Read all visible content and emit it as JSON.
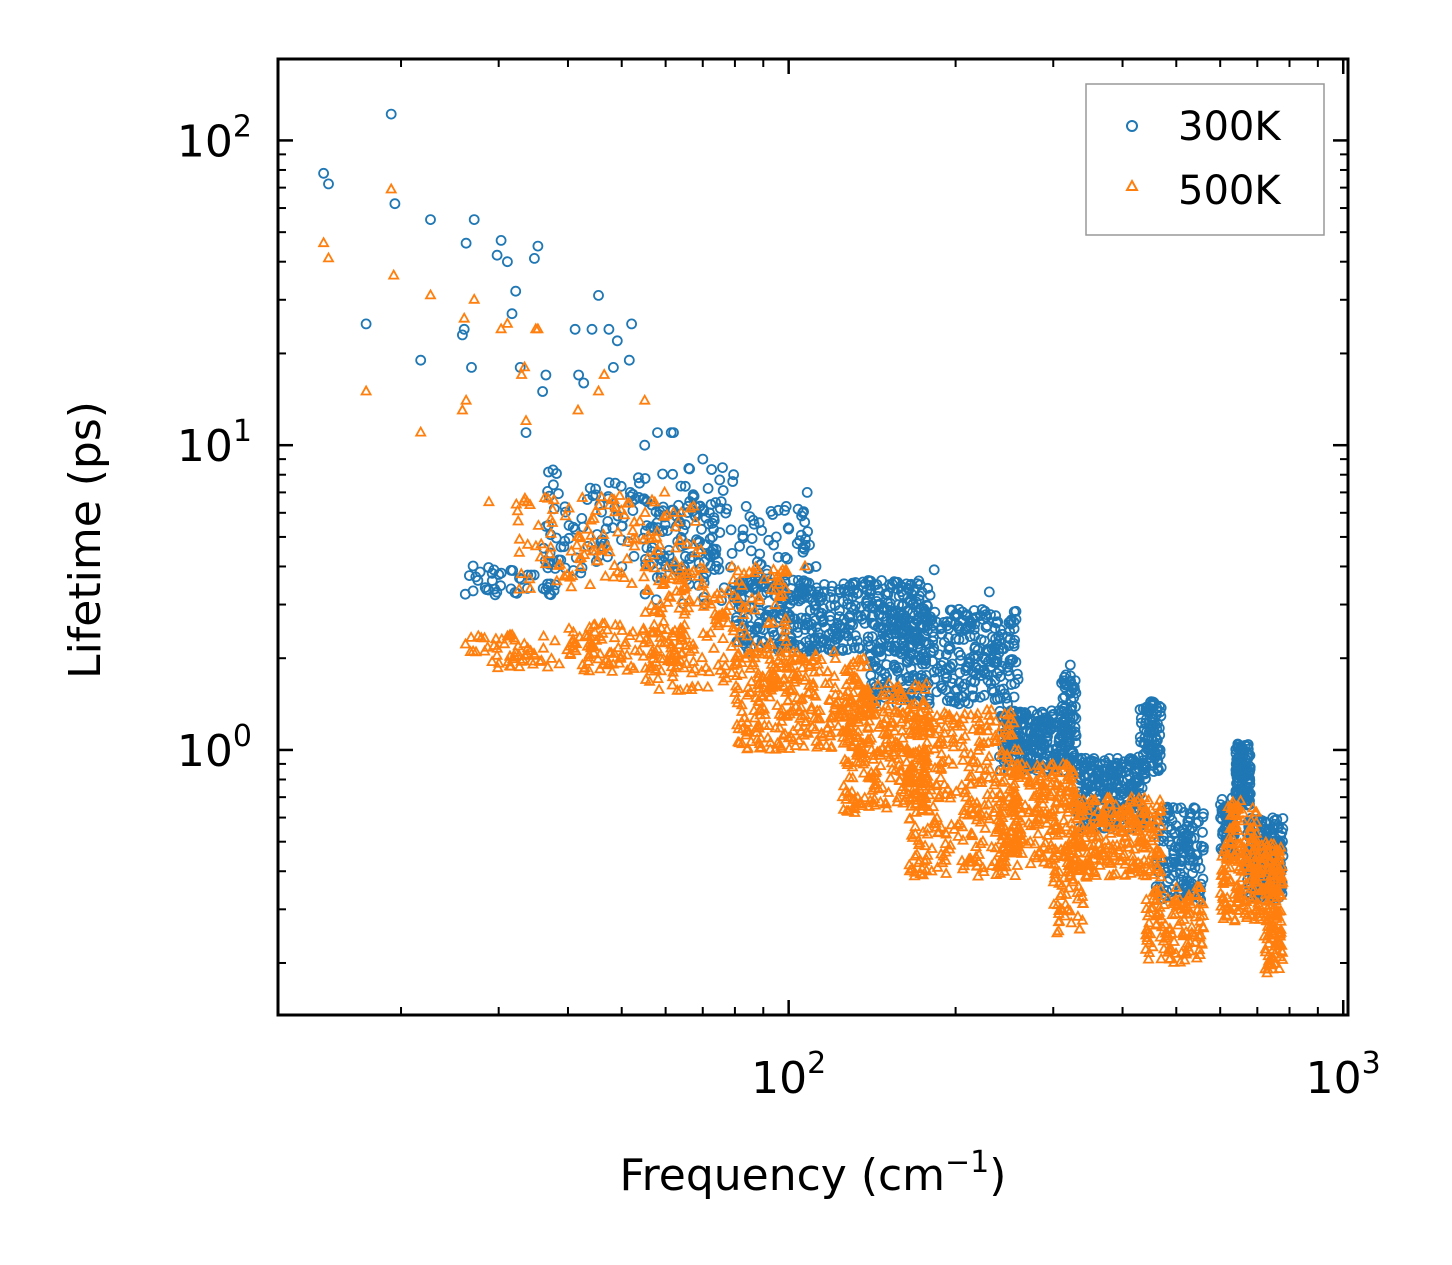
{
  "chart_data": {
    "type": "scatter",
    "x_scale": "log",
    "y_scale": "log",
    "xlabel": "Frequency (cm",
    "xlabel_sup": "−1",
    "xlabel_close": ")",
    "ylabel": "Lifetime (ps)",
    "xlim": [
      12,
      1020
    ],
    "ylim": [
      0.135,
      185
    ],
    "x_ticks": [
      {
        "base": "10",
        "exp": "2",
        "value": 100
      },
      {
        "base": "10",
        "exp": "3",
        "value": 1000
      }
    ],
    "y_ticks": [
      {
        "base": "10",
        "exp": "0",
        "value": 1
      },
      {
        "base": "10",
        "exp": "1",
        "value": 10
      },
      {
        "base": "10",
        "exp": "2",
        "value": 100
      }
    ],
    "legend": {
      "location": "upper right",
      "entries": [
        "300K",
        "500K"
      ]
    },
    "series": [
      {
        "name": "300K",
        "marker": "circle",
        "color": "#1f77b4",
        "outliers": [
          [
            14.5,
            78
          ],
          [
            14.8,
            72
          ],
          [
            17.3,
            25
          ],
          [
            19.2,
            122
          ],
          [
            19.5,
            62
          ],
          [
            21.7,
            19
          ],
          [
            22.6,
            55
          ],
          [
            25.8,
            23
          ],
          [
            26,
            24
          ],
          [
            26.2,
            46
          ],
          [
            26.8,
            18
          ],
          [
            27.1,
            55
          ],
          [
            29.8,
            42
          ],
          [
            30.3,
            47
          ],
          [
            31.1,
            40
          ],
          [
            31.7,
            27
          ],
          [
            32.2,
            32
          ],
          [
            32.8,
            18
          ],
          [
            33.6,
            11
          ],
          [
            34.8,
            41
          ],
          [
            35.3,
            45
          ],
          [
            36.5,
            17
          ],
          [
            36,
            15
          ],
          [
            41.2,
            24
          ],
          [
            41.8,
            17
          ],
          [
            42.7,
            16
          ],
          [
            44.2,
            24
          ],
          [
            45.4,
            31
          ],
          [
            47.4,
            24
          ],
          [
            48.3,
            18
          ],
          [
            49.1,
            22
          ],
          [
            51.6,
            19
          ],
          [
            52.1,
            25
          ],
          [
            55,
            10
          ],
          [
            58,
            11
          ],
          [
            61.4,
            11
          ],
          [
            62,
            11
          ],
          [
            70,
            9
          ],
          [
            72,
            6
          ],
          [
            95,
            5
          ],
          [
            106,
            6
          ],
          [
            108,
            7
          ],
          [
            112,
            4
          ],
          [
            183,
            3.9
          ],
          [
            230,
            3.3
          ],
          [
            322,
            1.9
          ]
        ],
        "bands": [
          {
            "x": [
              26,
              38
            ],
            "y": [
              3.2,
              4.2
            ],
            "n": 45
          },
          {
            "x": [
              36,
              80
            ],
            "y": [
              3.8,
              8.5
            ],
            "n": 150
          },
          {
            "x": [
              55,
              110
            ],
            "y": [
              3.0,
              6.5
            ],
            "n": 160
          },
          {
            "x": [
              80,
              180
            ],
            "y": [
              2.1,
              3.6
            ],
            "n": 420
          },
          {
            "x": [
              140,
              260
            ],
            "y": [
              1.4,
              2.9
            ],
            "n": 380
          },
          {
            "x": [
              240,
              330
            ],
            "y": [
              0.85,
              1.35
            ],
            "n": 260
          },
          {
            "x": [
              310,
              330
            ],
            "y": [
              1.1,
              1.8
            ],
            "n": 40
          },
          {
            "x": [
              330,
              440
            ],
            "y": [
              0.55,
              0.95
            ],
            "n": 260
          },
          {
            "x": [
              430,
              470
            ],
            "y": [
              0.85,
              1.45
            ],
            "n": 90
          },
          {
            "x": [
              460,
              560
            ],
            "y": [
              0.32,
              0.65
            ],
            "n": 150
          },
          {
            "x": [
              600,
              640
            ],
            "y": [
              0.45,
              0.7
            ],
            "n": 60
          },
          {
            "x": [
              640,
              680
            ],
            "y": [
              0.65,
              1.05
            ],
            "n": 120
          },
          {
            "x": [
              670,
              780
            ],
            "y": [
              0.32,
              0.6
            ],
            "n": 200
          }
        ]
      },
      {
        "name": "500K",
        "marker": "triangle",
        "color": "#ff7f0e",
        "outliers": [
          [
            14.5,
            46
          ],
          [
            14.8,
            41
          ],
          [
            17.3,
            15
          ],
          [
            19.2,
            69
          ],
          [
            19.4,
            36
          ],
          [
            21.7,
            11
          ],
          [
            22.6,
            31
          ],
          [
            25.8,
            13
          ],
          [
            26,
            26
          ],
          [
            26.2,
            14
          ],
          [
            27.1,
            30
          ],
          [
            28.8,
            6.5
          ],
          [
            30.3,
            24
          ],
          [
            31.1,
            25
          ],
          [
            33,
            17
          ],
          [
            33.4,
            18
          ],
          [
            33.6,
            12
          ],
          [
            35.3,
            24
          ],
          [
            35,
            24
          ],
          [
            41.7,
            13
          ],
          [
            45.4,
            15
          ],
          [
            46.5,
            17
          ],
          [
            55,
            14
          ],
          [
            62,
            6
          ],
          [
            64,
            6
          ],
          [
            107,
            4
          ]
        ],
        "bands": [
          {
            "x": [
              26,
              45
            ],
            "y": [
              1.85,
              2.4
            ],
            "n": 70
          },
          {
            "x": [
              40,
              65
            ],
            "y": [
              1.8,
              2.6
            ],
            "n": 90
          },
          {
            "x": [
              32,
              70
            ],
            "y": [
              3.3,
              7.0
            ],
            "n": 140
          },
          {
            "x": [
              55,
              100
            ],
            "y": [
              1.55,
              4.0
            ],
            "n": 220
          },
          {
            "x": [
              80,
              140
            ],
            "y": [
              1.0,
              2.1
            ],
            "n": 300
          },
          {
            "x": [
              125,
              180
            ],
            "y": [
              0.62,
              1.65
            ],
            "n": 280
          },
          {
            "x": [
              165,
              260
            ],
            "y": [
              0.38,
              1.35
            ],
            "n": 340
          },
          {
            "x": [
              240,
              330
            ],
            "y": [
              0.42,
              0.9
            ],
            "n": 240
          },
          {
            "x": [
              300,
              340
            ],
            "y": [
              0.25,
              0.5
            ],
            "n": 60
          },
          {
            "x": [
              330,
              470
            ],
            "y": [
              0.38,
              0.7
            ],
            "n": 240
          },
          {
            "x": [
              440,
              560
            ],
            "y": [
              0.2,
              0.36
            ],
            "n": 130
          },
          {
            "x": [
              600,
              780
            ],
            "y": [
              0.27,
              0.5
            ],
            "n": 230
          },
          {
            "x": [
              620,
              700
            ],
            "y": [
              0.5,
              0.68
            ],
            "n": 40
          },
          {
            "x": [
              720,
              780
            ],
            "y": [
              0.18,
              0.3
            ],
            "n": 60
          }
        ]
      }
    ]
  }
}
